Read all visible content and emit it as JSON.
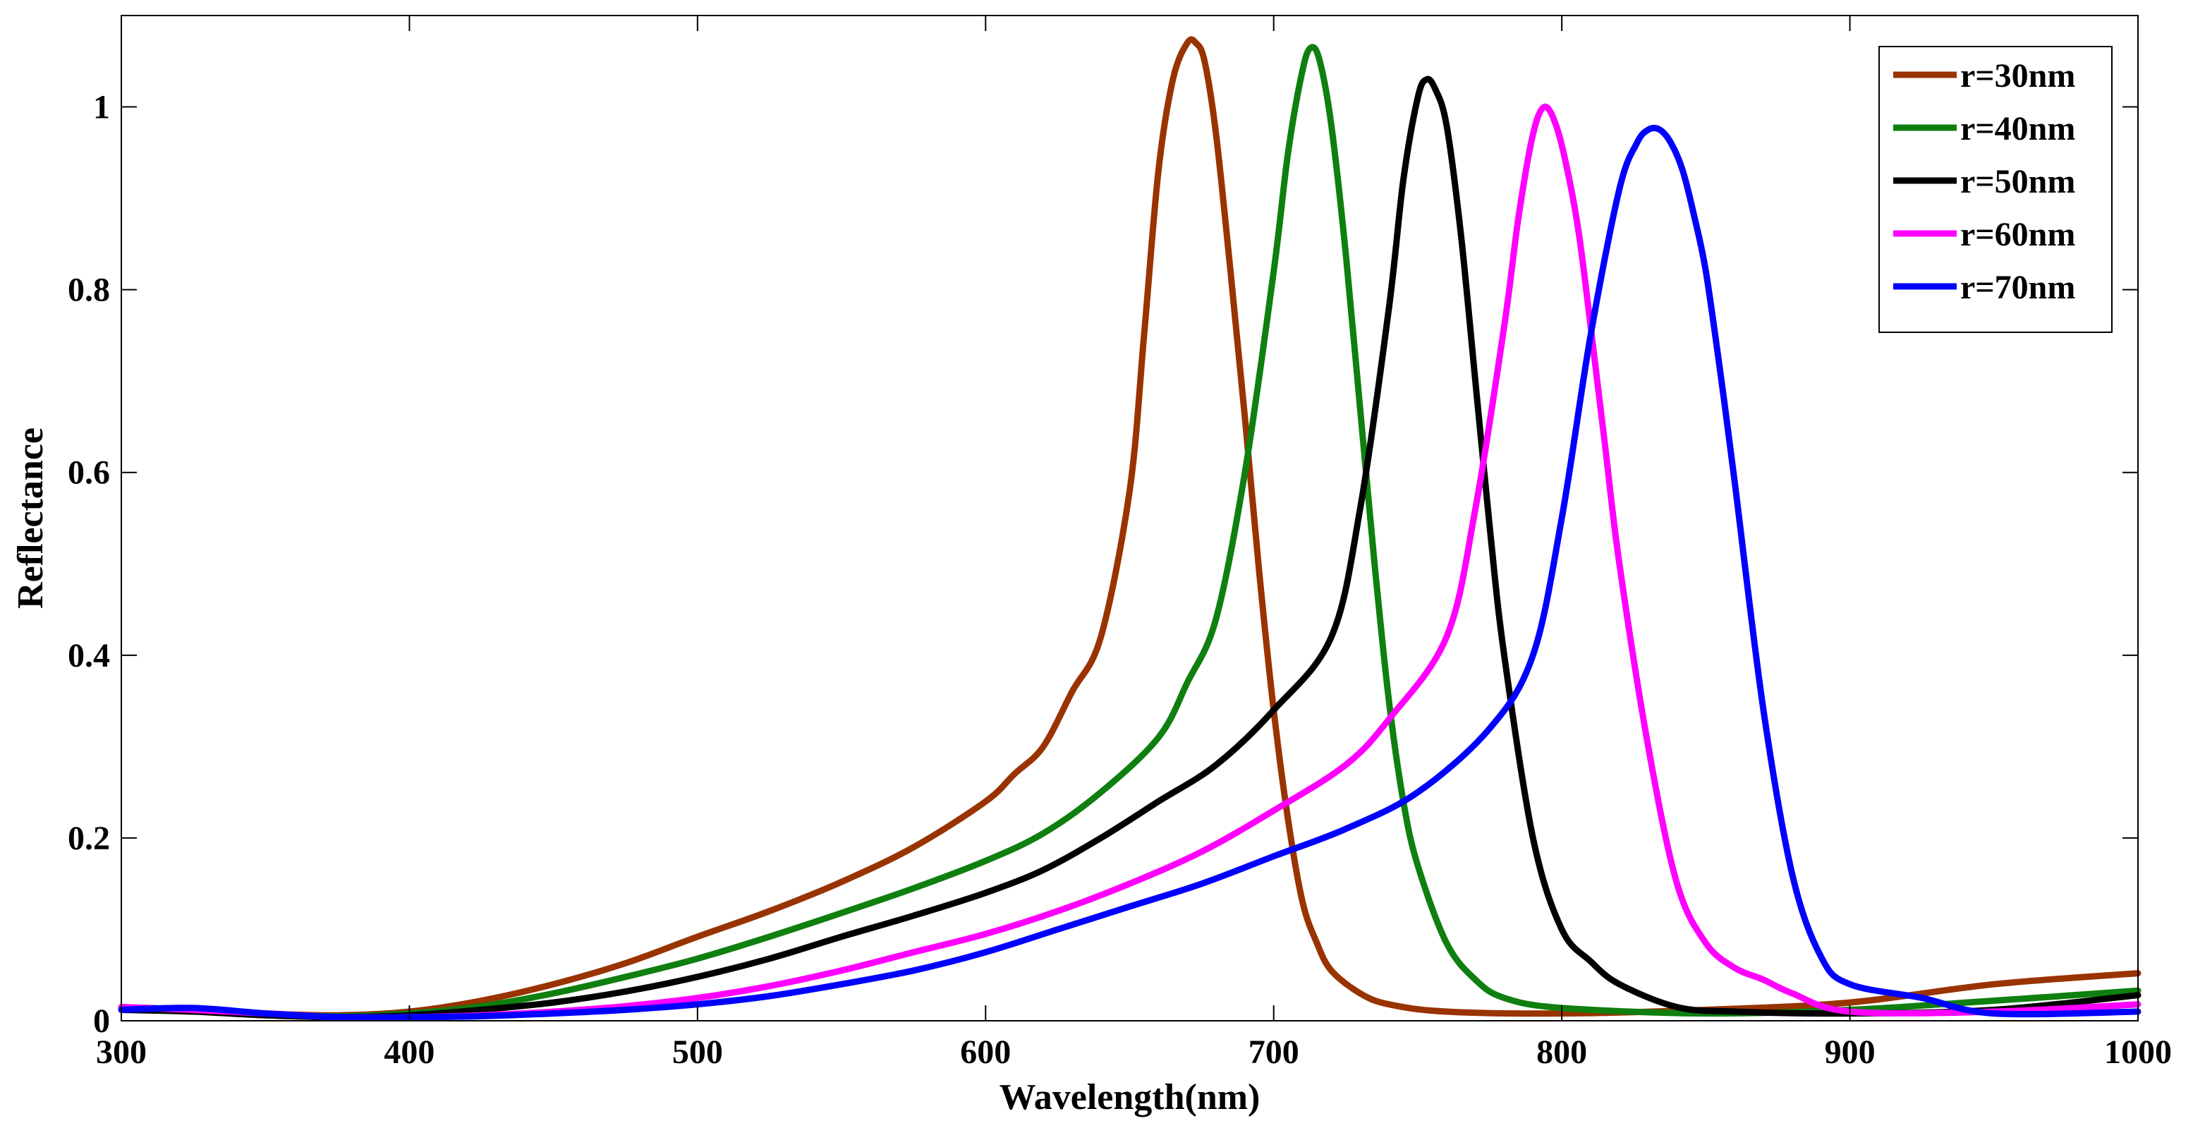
{
  "chart_data": {
    "type": "line",
    "title": "",
    "xlabel": "Wavelength(nm)",
    "ylabel": "Reflectance",
    "xlim": [
      300,
      1000
    ],
    "ylim": [
      0,
      1.1
    ],
    "xticks": [
      300,
      400,
      500,
      600,
      700,
      800,
      900,
      1000
    ],
    "xtick_labels": [
      "300",
      "400",
      "500",
      "600",
      "700",
      "800",
      "900",
      "1000"
    ],
    "yticks": [
      0,
      0.2,
      0.4,
      0.6,
      0.8,
      1
    ],
    "ytick_labels": [
      "0",
      "0.2",
      "0.4",
      "0.6",
      "0.8",
      "1"
    ],
    "grid": false,
    "legend_position": "top-right",
    "series": [
      {
        "name": "r=30nm",
        "color": "#993300",
        "x": [
          300,
          325,
          350,
          375,
          400,
          425,
          450,
          475,
          500,
          525,
          550,
          575,
          600,
          610,
          620,
          630,
          640,
          650,
          655,
          660,
          665,
          670,
          673,
          676,
          680,
          685,
          690,
          695,
          700,
          705,
          710,
          715,
          720,
          730,
          740,
          760,
          800,
          850,
          900,
          950,
          1000
        ],
        "values": [
          0.015,
          0.012,
          0.008,
          0.006,
          0.01,
          0.022,
          0.04,
          0.063,
          0.092,
          0.12,
          0.152,
          0.19,
          0.24,
          0.27,
          0.3,
          0.36,
          0.42,
          0.58,
          0.75,
          0.93,
          1.03,
          1.07,
          1.07,
          1.05,
          0.97,
          0.82,
          0.66,
          0.49,
          0.34,
          0.22,
          0.13,
          0.085,
          0.055,
          0.03,
          0.018,
          0.01,
          0.008,
          0.012,
          0.02,
          0.04,
          0.052
        ]
      },
      {
        "name": "r=40nm",
        "color": "#0f7f0f",
        "x": [
          300,
          325,
          350,
          375,
          400,
          425,
          450,
          475,
          500,
          525,
          550,
          575,
          600,
          620,
          640,
          660,
          670,
          680,
          690,
          700,
          705,
          710,
          713,
          716,
          720,
          725,
          730,
          735,
          740,
          745,
          750,
          760,
          770,
          780,
          800,
          850,
          900,
          950,
          1000
        ],
        "values": [
          0.015,
          0.012,
          0.007,
          0.005,
          0.008,
          0.016,
          0.03,
          0.048,
          0.068,
          0.092,
          0.118,
          0.145,
          0.175,
          0.205,
          0.25,
          0.31,
          0.37,
          0.44,
          0.6,
          0.82,
          0.95,
          1.04,
          1.065,
          1.05,
          0.98,
          0.84,
          0.67,
          0.5,
          0.35,
          0.24,
          0.17,
          0.085,
          0.045,
          0.025,
          0.014,
          0.008,
          0.012,
          0.022,
          0.033
        ]
      },
      {
        "name": "r=50nm",
        "color": "#000000",
        "x": [
          300,
          325,
          350,
          375,
          400,
          425,
          450,
          475,
          500,
          525,
          550,
          575,
          600,
          620,
          640,
          660,
          680,
          700,
          720,
          730,
          740,
          745,
          750,
          753,
          756,
          760,
          765,
          770,
          775,
          780,
          790,
          800,
          810,
          820,
          840,
          860,
          900,
          950,
          1000
        ],
        "values": [
          0.012,
          0.01,
          0.006,
          0.004,
          0.006,
          0.012,
          0.02,
          0.032,
          0.048,
          0.068,
          0.092,
          0.115,
          0.14,
          0.165,
          0.2,
          0.24,
          0.28,
          0.34,
          0.42,
          0.56,
          0.78,
          0.92,
          1.01,
          1.03,
          1.02,
          0.98,
          0.86,
          0.7,
          0.54,
          0.4,
          0.2,
          0.1,
          0.065,
          0.04,
          0.015,
          0.01,
          0.008,
          0.012,
          0.028
        ]
      },
      {
        "name": "r=60nm",
        "color": "#ff00ff",
        "x": [
          300,
          325,
          350,
          375,
          400,
          425,
          450,
          475,
          500,
          525,
          550,
          575,
          600,
          625,
          650,
          675,
          700,
          725,
          740,
          760,
          770,
          780,
          785,
          790,
          794,
          798,
          802,
          806,
          810,
          815,
          820,
          830,
          840,
          850,
          860,
          870,
          880,
          900,
          950,
          1000
        ],
        "values": [
          0.015,
          0.012,
          0.008,
          0.004,
          0.004,
          0.006,
          0.01,
          0.016,
          0.025,
          0.038,
          0.055,
          0.075,
          0.095,
          0.12,
          0.15,
          0.185,
          0.23,
          0.28,
          0.33,
          0.42,
          0.56,
          0.76,
          0.88,
          0.97,
          1.0,
          0.98,
          0.93,
          0.86,
          0.76,
          0.63,
          0.5,
          0.3,
          0.15,
          0.085,
          0.058,
          0.045,
          0.03,
          0.01,
          0.01,
          0.018
        ]
      },
      {
        "name": "r=70nm",
        "color": "#0000ff",
        "x": [
          300,
          325,
          350,
          375,
          400,
          425,
          450,
          475,
          500,
          525,
          550,
          575,
          600,
          625,
          650,
          675,
          700,
          725,
          750,
          775,
          790,
          800,
          810,
          820,
          826,
          830,
          834,
          838,
          842,
          846,
          850,
          855,
          860,
          870,
          880,
          890,
          900,
          925,
          950,
          1000
        ],
        "values": [
          0.012,
          0.014,
          0.008,
          0.004,
          0.004,
          0.005,
          0.008,
          0.012,
          0.018,
          0.027,
          0.04,
          0.055,
          0.075,
          0.1,
          0.125,
          0.15,
          0.18,
          0.21,
          0.25,
          0.32,
          0.4,
          0.55,
          0.75,
          0.91,
          0.96,
          0.975,
          0.975,
          0.96,
          0.93,
          0.88,
          0.82,
          0.71,
          0.59,
          0.34,
          0.16,
          0.07,
          0.04,
          0.025,
          0.008,
          0.01
        ]
      }
    ]
  }
}
